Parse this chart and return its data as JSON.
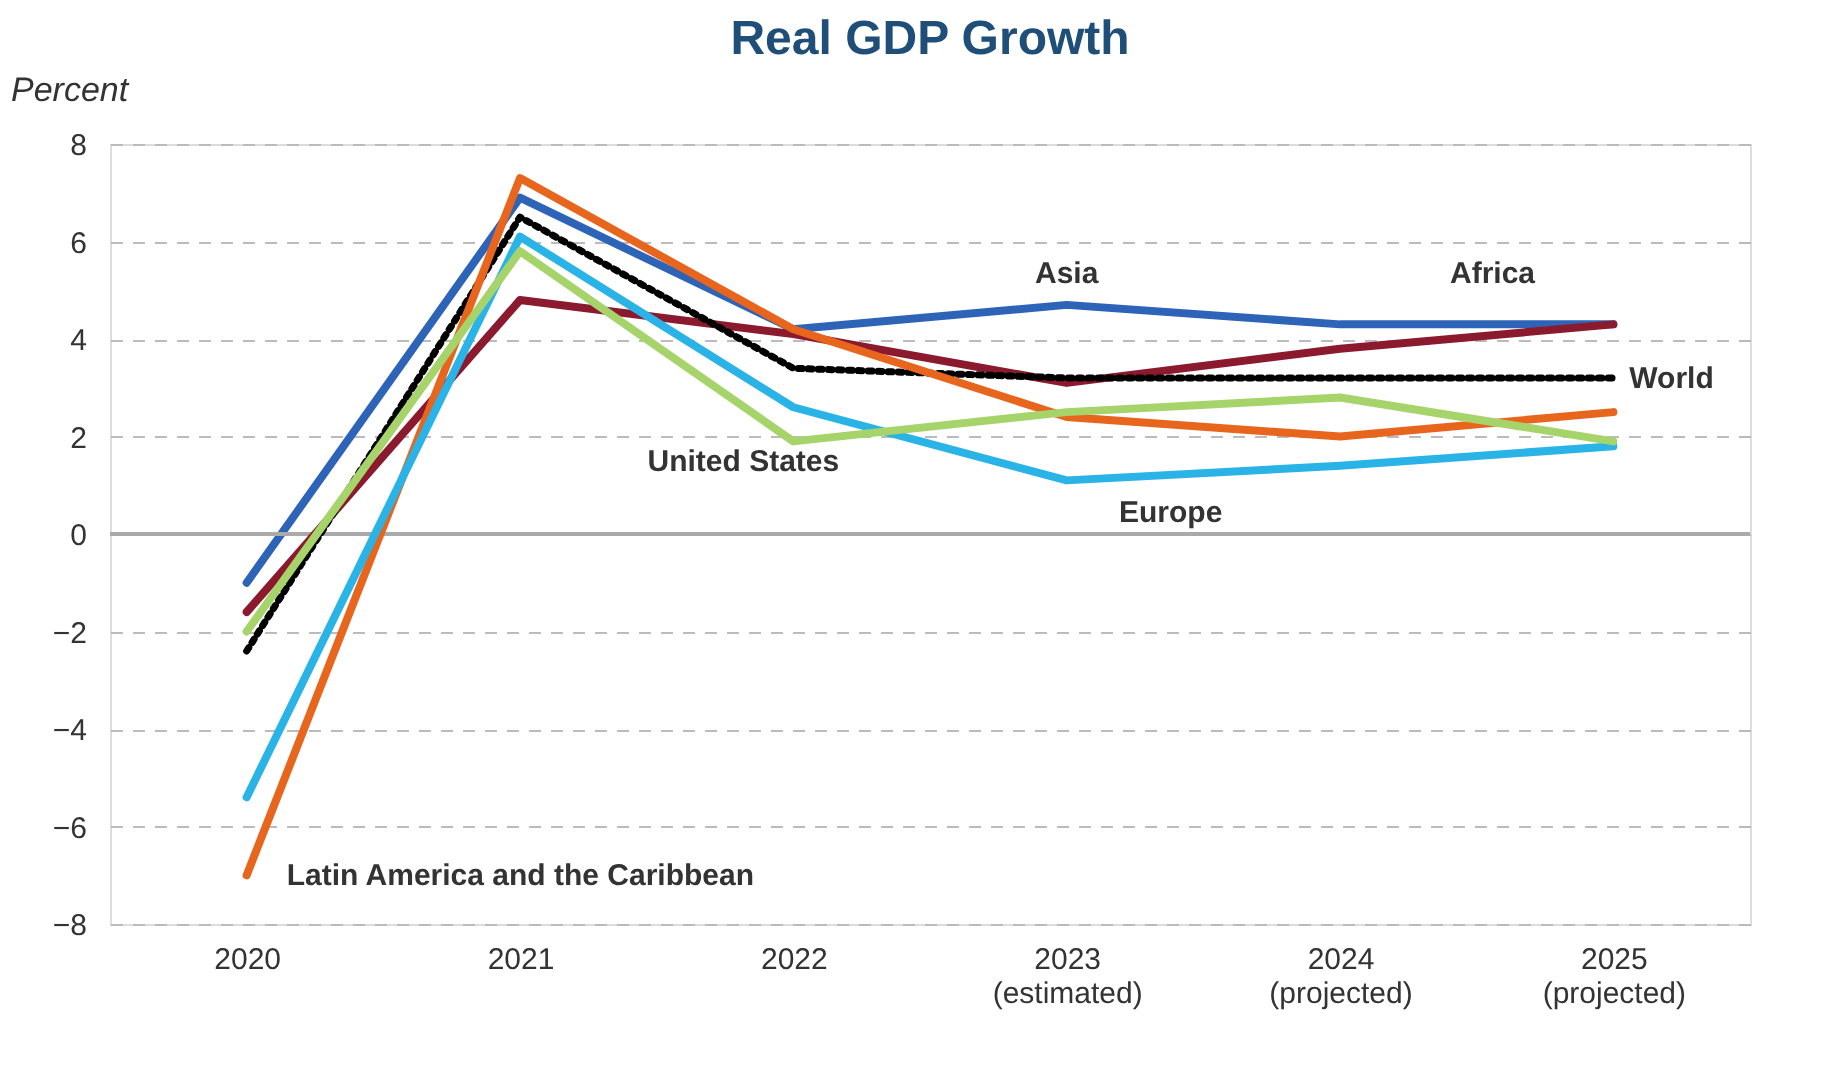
{
  "chart_data": {
    "type": "line",
    "title": "Real GDP Growth",
    "ylabel": "Percent",
    "categories": [
      "2020",
      "2021",
      "2022",
      "2023 (estimated)",
      "2024 (projected)",
      "2025 (projected)"
    ],
    "series": [
      {
        "name": "Asia",
        "color": "#2e64b8",
        "values": [
          -1.0,
          6.9,
          4.2,
          4.7,
          4.3,
          4.3
        ]
      },
      {
        "name": "Africa",
        "color": "#8b1a2e",
        "values": [
          -1.6,
          4.8,
          4.1,
          3.1,
          3.8,
          4.3
        ]
      },
      {
        "name": "World",
        "color": "#000000",
        "line_style": "dotted",
        "values": [
          -2.4,
          6.5,
          3.4,
          3.2,
          3.2,
          3.2
        ]
      },
      {
        "name": "Latin America and the Caribbean",
        "color": "#e8651e",
        "values": [
          -7.0,
          7.3,
          4.2,
          2.4,
          2.0,
          2.5
        ]
      },
      {
        "name": "Europe",
        "color": "#2ab3e6",
        "values": [
          -5.4,
          6.1,
          2.6,
          1.1,
          1.4,
          1.8
        ]
      },
      {
        "name": "United States",
        "color": "#a6d46a",
        "values": [
          -2.0,
          5.8,
          1.9,
          2.5,
          2.8,
          1.9
        ]
      }
    ],
    "ylim": [
      -8,
      8
    ],
    "yticks": [
      -8,
      -6,
      -4,
      -2,
      0,
      2,
      4,
      6,
      8
    ],
    "grid": "y",
    "ref_lines": [
      {
        "axis": "y",
        "value": 0,
        "color": "#aaaaaa",
        "line_style": "solid"
      }
    ],
    "marker": "none"
  }
}
